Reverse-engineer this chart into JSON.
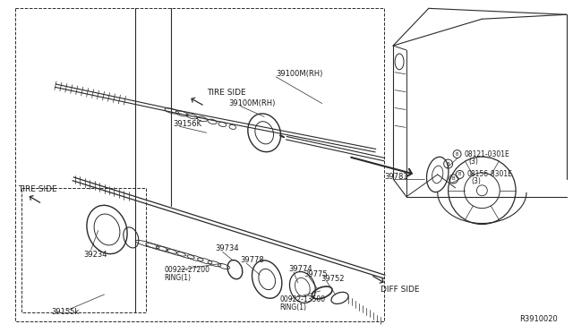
{
  "background_color": "#ffffff",
  "diagram_ref": "R3910020",
  "line_color": "#2a2a2a",
  "text_color": "#1a1a1a",
  "fig_width": 6.4,
  "fig_height": 3.72,
  "dpi": 100,
  "parts": {
    "39100M_RH_top": "39100M(RH)",
    "39100M_RH_mid": "39100M(RH)",
    "39156K": "39156K",
    "39734": "39734",
    "39778": "39778",
    "39774": "39774",
    "39775": "39775",
    "39752": "39752",
    "39234": "39234",
    "39155K": "39155k",
    "39781": "39781",
    "ring1": "00922-27200",
    "ring1b": "RING(1)",
    "ring2": "00922-13500",
    "ring2b": "RING(1)",
    "bolt1": "08121-0301E",
    "bolt1b": "(3)",
    "bolt2": "08156-8301E",
    "bolt2b": "(3)"
  }
}
